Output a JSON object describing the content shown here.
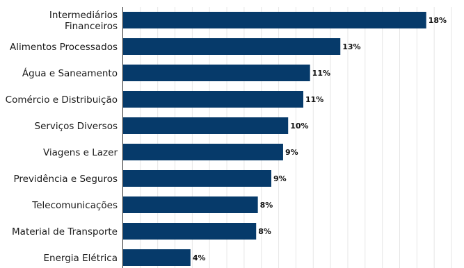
{
  "chart_data": {
    "type": "bar",
    "orientation": "horizontal",
    "categories": [
      [
        "Intermediários",
        "Financeiros"
      ],
      [
        "Alimentos Processados"
      ],
      [
        "Água e Saneamento"
      ],
      [
        "Comércio e Distribuição"
      ],
      [
        "Serviços Diversos"
      ],
      [
        "Viagens e Lazer"
      ],
      [
        "Previdência e Seguros"
      ],
      [
        "Telecomunicações"
      ],
      [
        "Material de Transporte"
      ],
      [
        "Energia Elétrica"
      ]
    ],
    "values": [
      18.0,
      12.9,
      11.1,
      10.7,
      9.8,
      9.5,
      8.8,
      8.0,
      7.9,
      4.0
    ],
    "value_labels": [
      "18%",
      "13%",
      "11%",
      "11%",
      "10%",
      "9%",
      "9%",
      "8%",
      "8%",
      "4%"
    ],
    "xlim": [
      0,
      19.5
    ],
    "grid": true,
    "title": "",
    "xlabel": "",
    "ylabel": "",
    "colors": {
      "bar": "#063a6a",
      "grid": "#e6e6e6",
      "axis": "#333333"
    }
  }
}
